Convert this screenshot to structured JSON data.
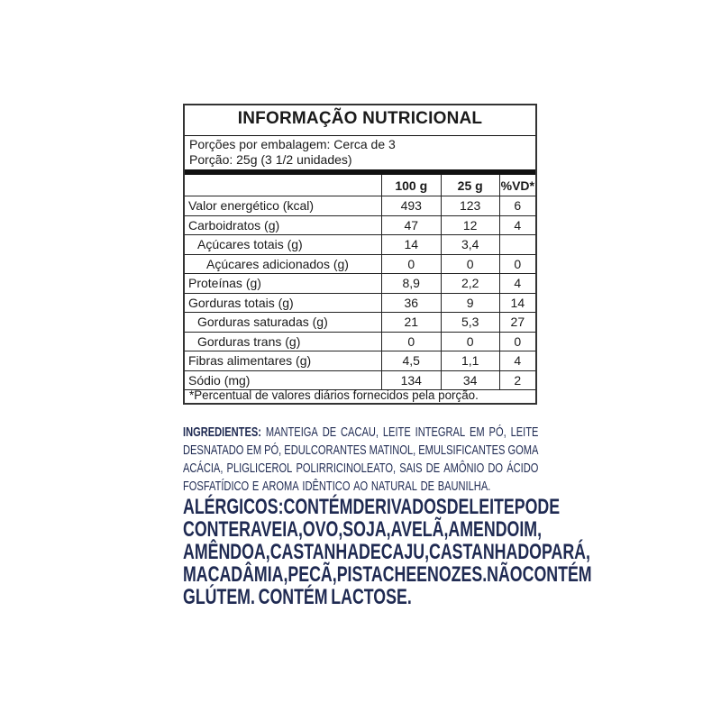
{
  "nutrition": {
    "title": "INFORMAÇÃO NUTRICIONAL",
    "servings_per_package": "Porções por embalagem: Cerca de 3",
    "serving_size": "Porção: 25g (3 1/2 unidades)",
    "columns": [
      "",
      "100 g",
      "25 g",
      "%VD*"
    ],
    "rows": [
      {
        "name": "Valor energético (kcal)",
        "indent": 0,
        "v100": "493",
        "v25": "123",
        "vd": "6"
      },
      {
        "name": "Carboidratos (g)",
        "indent": 0,
        "v100": "47",
        "v25": "12",
        "vd": "4"
      },
      {
        "name": "Açúcares totais (g)",
        "indent": 1,
        "v100": "14",
        "v25": "3,4",
        "vd": ""
      },
      {
        "name": "Açúcares adicionados (g)",
        "indent": 2,
        "v100": "0",
        "v25": "0",
        "vd": "0"
      },
      {
        "name": "Proteínas (g)",
        "indent": 0,
        "v100": "8,9",
        "v25": "2,2",
        "vd": "4"
      },
      {
        "name": "Gorduras totais (g)",
        "indent": 0,
        "v100": "36",
        "v25": "9",
        "vd": "14"
      },
      {
        "name": "Gorduras saturadas (g)",
        "indent": 1,
        "v100": "21",
        "v25": "5,3",
        "vd": "27"
      },
      {
        "name": "Gorduras trans (g)",
        "indent": 1,
        "v100": "0",
        "v25": "0",
        "vd": "0"
      },
      {
        "name": "Fibras alimentares (g)",
        "indent": 0,
        "v100": "4,5",
        "v25": "1,1",
        "vd": "4"
      },
      {
        "name": "Sódio (mg)",
        "indent": 0,
        "v100": "134",
        "v25": "34",
        "vd": "2"
      }
    ],
    "footnote": "*Percentual de valores diários fornecidos pela porção."
  },
  "ingredients": {
    "label": "INGREDIENTES:",
    "lines": [
      "MANTEIGA DE CACAU, LEITE INTEGRAL EM PÓ, LEITE",
      "DESNATADO EM PÓ, EDULCORANTES MATINOL, EMULSIFICANTES GOMA",
      "ACÁCIA, PLIGLICEROL POLIRRICINOLEATO, SAIS DE AMÔNIO DO ÁCIDO",
      "FOSFATÍDICO E AROMA IDÊNTICO AO NATURAL DE BAUNILHA."
    ]
  },
  "allergens": {
    "lines": [
      "ALÉRGICOS: CONTÉM DERIVADOS DE LEITE PODE",
      "CONTER AVEIA, OVO, SOJA, AVELÃ, AMENDOIM,",
      "AMÊNDOA, CASTANHA DE CAJU, CASTANHA DO PARÁ,",
      "MACADÂMIA, PECÃ, PISTACHE E NOZES. NÃO CONTÉM",
      "GLÚTEM. CONTÉM LACTOSE."
    ]
  },
  "colors": {
    "text_navy": "#1f2a52",
    "border": "#333333"
  }
}
